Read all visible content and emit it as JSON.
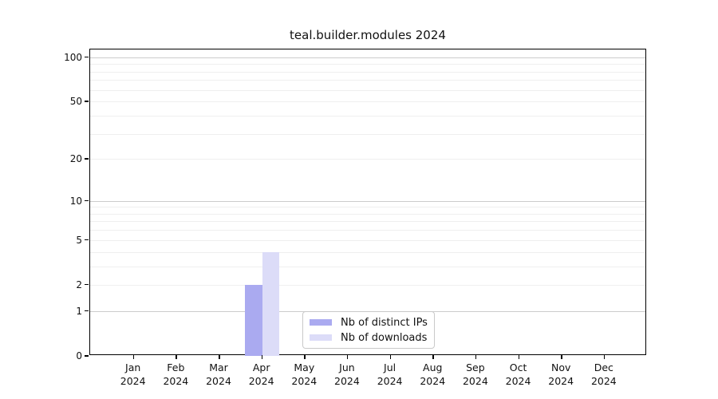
{
  "title": "teal.builder.modules 2024",
  "chart_data": {
    "type": "bar",
    "title": "teal.builder.modules 2024",
    "categories": [
      "Jan",
      "Feb",
      "Mar",
      "Apr",
      "May",
      "Jun",
      "Jul",
      "Aug",
      "Sep",
      "Oct",
      "Nov",
      "Dec"
    ],
    "x_sublabel": "2024",
    "series": [
      {
        "name": "Nb of distinct IPs",
        "color": "#aaaaf0",
        "values": [
          0,
          0,
          0,
          2,
          0,
          0,
          0,
          0,
          0,
          0,
          0,
          0
        ]
      },
      {
        "name": "Nb of downloads",
        "color": "#dcdcf8",
        "values": [
          0,
          0,
          0,
          4,
          0,
          0,
          0,
          0,
          0,
          0,
          0,
          0
        ]
      }
    ],
    "xlabel": "",
    "ylabel": "",
    "yscale": "log1p",
    "ylim": [
      0,
      113
    ],
    "y_ticks": [
      0,
      1,
      2,
      5,
      10,
      20,
      50,
      100
    ],
    "y_major_gridlines": [
      1,
      10,
      100
    ],
    "y_minor_gridlines": [
      2,
      3,
      4,
      5,
      6,
      7,
      8,
      9,
      20,
      30,
      40,
      50,
      60,
      70,
      80,
      90
    ],
    "grid": "on",
    "legend_position": "bottom-center-inside"
  },
  "colors": {
    "distinct_ips": "#aaaaf0",
    "downloads": "#dcdcf8",
    "grid_major": "#cccccc",
    "grid_minor": "#efefef",
    "axis": "#000000",
    "background": "#ffffff"
  }
}
